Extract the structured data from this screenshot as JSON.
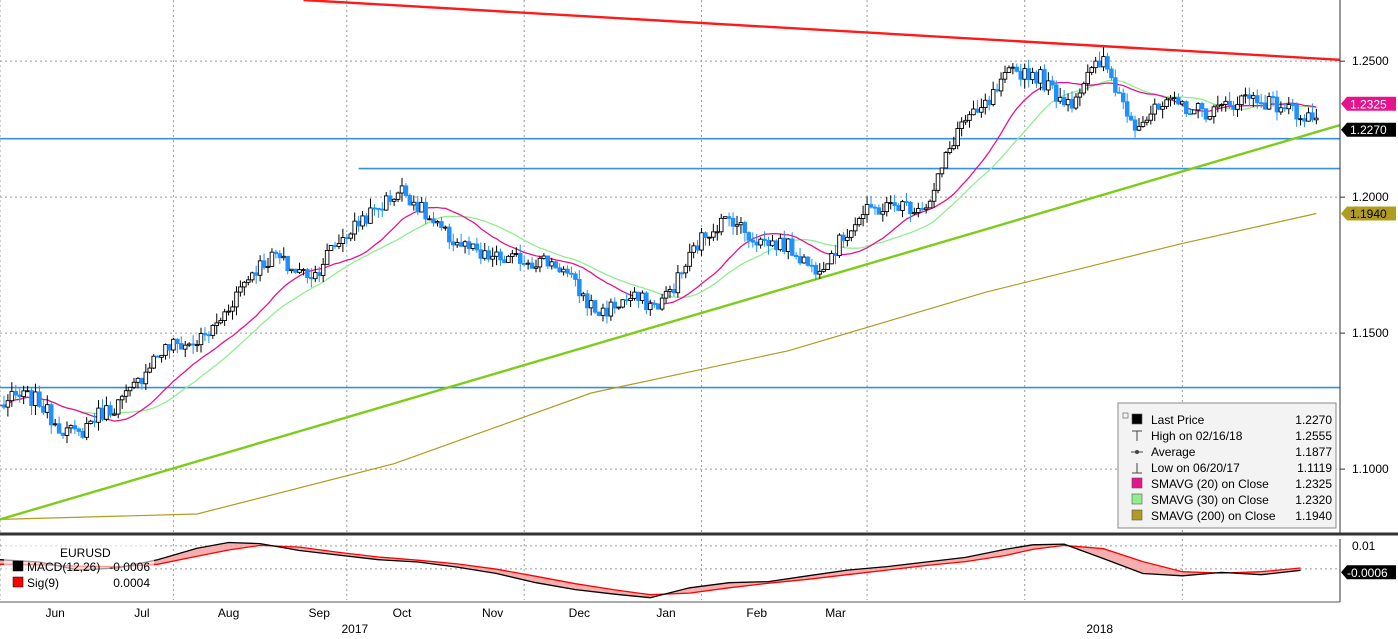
{
  "chart_data": {
    "type": "candlestick",
    "instrument": "EURUSD",
    "colors": {
      "up": "#000000",
      "down": "#1e90ff",
      "resistance": "#ff1a1a",
      "support": "#7ccc1a",
      "hline": "#3a8fdc",
      "sma20": "#e6148c",
      "sma30": "#90ee90",
      "sma200": "#b09c20",
      "macd": "#000000",
      "signal": "#ff0000",
      "macd_fill": "#f4a0a0"
    },
    "x_axis": {
      "months": [
        "Jun",
        "Jul",
        "Aug",
        "Sep",
        "Oct",
        "Nov",
        "Dec",
        "Jan",
        "Feb",
        "Mar"
      ],
      "years": [
        "2017",
        "2018"
      ]
    },
    "y_axis": {
      "ticks": [
        "1.2500",
        "1.2000",
        "1.1500",
        "1.1000"
      ],
      "tick_values": [
        1.25,
        1.2,
        1.15,
        1.1
      ],
      "ylim": [
        1.0765,
        1.2725
      ]
    },
    "tags": [
      {
        "label": "1.2325",
        "value": 1.2325,
        "bg": "#e6148c",
        "fg": "#ffffff"
      },
      {
        "label": "1.2270",
        "value": 1.227,
        "bg": "#000000",
        "fg": "#ffffff"
      },
      {
        "label": "1.1940",
        "value": 1.194,
        "bg": "#b09c20",
        "fg": "#000000"
      }
    ],
    "horizontal_lines": [
      {
        "name": "resistance-1",
        "value": 1.2215,
        "from_day": 0,
        "to_day": 340
      },
      {
        "name": "support-level-2",
        "value": 1.2105,
        "from_day": 91,
        "to_day": 340
      },
      {
        "name": "support-level-3",
        "value": 1.13,
        "from_day": 0,
        "to_day": 340
      }
    ],
    "trendlines": [
      {
        "name": "resistance-trendline",
        "color": "resistance",
        "points": [
          [
            77,
            1.2725
          ],
          [
            340,
            1.2505
          ]
        ]
      },
      {
        "name": "support-trendline",
        "color": "support",
        "points": [
          [
            0,
            1.0815
          ],
          [
            340,
            1.2265
          ]
        ]
      }
    ],
    "sma_ends": {
      "sma20": 1.2325,
      "sma30": 1.232,
      "sma200": 1.194
    },
    "legend": {
      "rows": [
        {
          "swatch": "box",
          "color": "#000000",
          "label": "Last Price",
          "value": "1.2270"
        },
        {
          "swatch": "high",
          "color": "#444444",
          "label": "High on 02/16/18",
          "value": "1.2555"
        },
        {
          "swatch": "avg",
          "color": "#444444",
          "label": "Average",
          "value": "1.1877"
        },
        {
          "swatch": "low",
          "color": "#444444",
          "label": "Low on 06/20/17",
          "value": "1.1119"
        },
        {
          "swatch": "box",
          "color": "#e6148c",
          "label": "SMAVG (20) on Close",
          "value": "1.2325"
        },
        {
          "swatch": "box",
          "color": "#90ee90",
          "label": "SMAVG (30) on Close",
          "value": "1.2320"
        },
        {
          "swatch": "box",
          "color": "#b09c20",
          "label": "SMAVG (200) on Close",
          "value": "1.1940"
        }
      ]
    },
    "macd_panel": {
      "title": "EURUSD",
      "rows": [
        {
          "color": "#000000",
          "label": "MACD(12,26)",
          "value": "-0.0006"
        },
        {
          "color": "#ff0000",
          "label": "Sig(9)",
          "value": "0.0004"
        }
      ],
      "ticks": [
        "0.01"
      ],
      "tick_values": [
        0.01
      ],
      "ylim": [
        -0.0135,
        0.013
      ],
      "tag": {
        "label": "-0.0006",
        "value": -0.0006
      },
      "macd_points": [
        [
          0,
          0.004
        ],
        [
          10,
          0.003
        ],
        [
          20,
          -0.0005
        ],
        [
          30,
          0.0005
        ],
        [
          40,
          0.004
        ],
        [
          50,
          0.009
        ],
        [
          58,
          0.0115
        ],
        [
          66,
          0.011
        ],
        [
          76,
          0.008
        ],
        [
          86,
          0.006
        ],
        [
          96,
          0.004
        ],
        [
          106,
          0.003
        ],
        [
          116,
          0.0008
        ],
        [
          126,
          -0.002
        ],
        [
          136,
          -0.006
        ],
        [
          146,
          -0.009
        ],
        [
          156,
          -0.011
        ],
        [
          165,
          -0.0125
        ],
        [
          175,
          -0.0082
        ],
        [
          185,
          -0.006
        ],
        [
          195,
          -0.0055
        ],
        [
          205,
          -0.003
        ],
        [
          215,
          -0.0005
        ],
        [
          225,
          0.001
        ],
        [
          235,
          0.003
        ],
        [
          245,
          0.005
        ],
        [
          255,
          0.0085
        ],
        [
          262,
          0.0105
        ],
        [
          270,
          0.0108
        ],
        [
          280,
          0.0045
        ],
        [
          290,
          -0.002
        ],
        [
          300,
          -0.003
        ],
        [
          310,
          -0.0015
        ],
        [
          320,
          -0.0025
        ],
        [
          330,
          -0.0006
        ]
      ],
      "signal_points": [
        [
          0,
          0.002
        ],
        [
          10,
          0.0018
        ],
        [
          20,
          0.0012
        ],
        [
          30,
          0.001
        ],
        [
          40,
          0.002
        ],
        [
          50,
          0.0055
        ],
        [
          58,
          0.0082
        ],
        [
          66,
          0.0102
        ],
        [
          76,
          0.0095
        ],
        [
          86,
          0.0072
        ],
        [
          96,
          0.0052
        ],
        [
          106,
          0.0038
        ],
        [
          116,
          0.0022
        ],
        [
          126,
          -0.0001
        ],
        [
          136,
          -0.0032
        ],
        [
          146,
          -0.0064
        ],
        [
          156,
          -0.0091
        ],
        [
          165,
          -0.0112
        ],
        [
          175,
          -0.0105
        ],
        [
          185,
          -0.0082
        ],
        [
          195,
          -0.0062
        ],
        [
          205,
          -0.0045
        ],
        [
          215,
          -0.0025
        ],
        [
          225,
          -0.0005
        ],
        [
          235,
          0.0015
        ],
        [
          245,
          0.0032
        ],
        [
          255,
          0.0058
        ],
        [
          262,
          0.0085
        ],
        [
          270,
          0.0102
        ],
        [
          280,
          0.0088
        ],
        [
          290,
          0.0032
        ],
        [
          300,
          -0.0012
        ],
        [
          310,
          -0.0018
        ],
        [
          320,
          -0.0012
        ],
        [
          330,
          0.0004
        ]
      ]
    }
  }
}
